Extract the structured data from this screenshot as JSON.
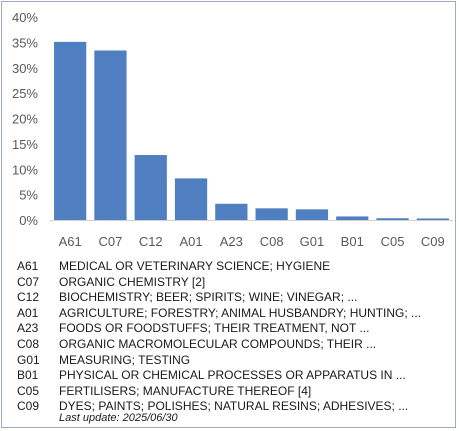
{
  "chart_data": {
    "type": "bar",
    "categories": [
      "A61",
      "C07",
      "C12",
      "A01",
      "A23",
      "C08",
      "G01",
      "B01",
      "C05",
      "C09"
    ],
    "values": [
      35.1,
      33.4,
      12.8,
      8.2,
      3.2,
      2.3,
      2.1,
      0.7,
      0.35,
      0.3
    ],
    "ylim": [
      0,
      40
    ],
    "yticks": [
      "0%",
      "5%",
      "10%",
      "15%",
      "20%",
      "25%",
      "30%",
      "35%",
      "40%"
    ],
    "bar_color": "#4f7fc0",
    "grid": false
  },
  "legend": [
    {
      "code": "A61",
      "desc": "MEDICAL OR VETERINARY SCIENCE; HYGIENE"
    },
    {
      "code": "C07",
      "desc": "ORGANIC CHEMISTRY [2]"
    },
    {
      "code": "C12",
      "desc": "BIOCHEMISTRY; BEER; SPIRITS; WINE; VINEGAR; ..."
    },
    {
      "code": "A01",
      "desc": "AGRICULTURE; FORESTRY; ANIMAL HUSBANDRY; HUNTING; ..."
    },
    {
      "code": "A23",
      "desc": "FOODS OR FOODSTUFFS; THEIR TREATMENT, NOT ..."
    },
    {
      "code": "C08",
      "desc": "ORGANIC MACROMOLECULAR COMPOUNDS; THEIR ..."
    },
    {
      "code": "G01",
      "desc": "MEASURING; TESTING"
    },
    {
      "code": "B01",
      "desc": "PHYSICAL OR CHEMICAL PROCESSES OR APPARATUS IN ..."
    },
    {
      "code": "C05",
      "desc": "FERTILISERS; MANUFACTURE THEREOF [4]"
    },
    {
      "code": "C09",
      "desc": "DYES; PAINTS; POLISHES; NATURAL RESINS; ADHESIVES; ..."
    }
  ],
  "footer": {
    "last_update": "Last update:  2025/06/30"
  }
}
